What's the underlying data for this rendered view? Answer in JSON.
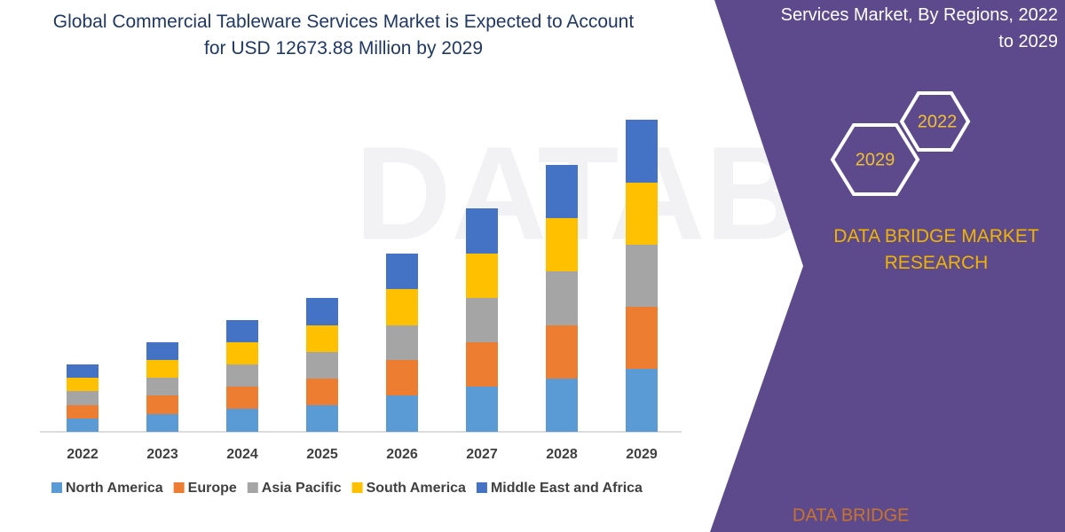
{
  "chart_data": {
    "type": "bar",
    "stacked": true,
    "title": "Global Commercial Tableware Services Market is Expected to Account for USD 12673.88 Million by 2029",
    "categories": [
      "2022",
      "2023",
      "2024",
      "2025",
      "2026",
      "2027",
      "2028",
      "2029"
    ],
    "series": [
      {
        "name": "North America",
        "color": "#5b9bd5",
        "values": [
          15,
          20,
          26,
          30,
          41,
          51,
          60,
          71
        ]
      },
      {
        "name": "Europe",
        "color": "#ed7d31",
        "values": [
          15,
          21,
          25,
          30,
          40,
          50,
          60,
          70
        ]
      },
      {
        "name": "Asia Pacific",
        "color": "#a5a5a5",
        "values": [
          16,
          20,
          25,
          30,
          39,
          50,
          61,
          70
        ]
      },
      {
        "name": "South America",
        "color": "#ffc000",
        "values": [
          15,
          20,
          25,
          30,
          41,
          50,
          60,
          70
        ]
      },
      {
        "name": "Middle East and Africa",
        "color": "#4472c4",
        "values": [
          15,
          20,
          25,
          31,
          40,
          51,
          60,
          71
        ]
      }
    ],
    "legend": "bottom"
  },
  "sidebar": {
    "title": "Services  Market, By Regions, 2022 to 2029",
    "year_badges": [
      "2022",
      "2029"
    ],
    "brand": "DATA BRIDGE MARKET RESEARCH",
    "logo_text": "DATA BRIDGE"
  }
}
